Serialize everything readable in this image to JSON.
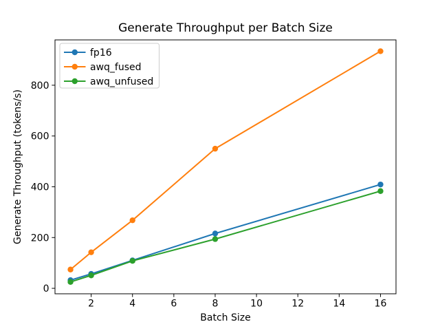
{
  "figure": {
    "title": "Generate Throughput per Batch Size",
    "xlabel": "Batch Size",
    "ylabel": "Generate Throughput (tokens/s)"
  },
  "chart_data": {
    "type": "line",
    "title": "Generate Throughput per Batch Size",
    "xlabel": "Batch Size",
    "ylabel": "Generate Throughput (tokens/s)",
    "x": [
      1,
      2,
      4,
      8,
      16
    ],
    "series": [
      {
        "name": "fp16",
        "color": "#1f77b4",
        "values": [
          32,
          57,
          110,
          216,
          409
        ]
      },
      {
        "name": "awq_fused",
        "color": "#ff7f0e",
        "values": [
          74,
          142,
          268,
          550,
          934
        ]
      },
      {
        "name": "awq_unfused",
        "color": "#2ca02c",
        "values": [
          25,
          51,
          108,
          194,
          383
        ]
      }
    ],
    "xlim": [
      0.25,
      16.75
    ],
    "ylim": [
      -21.5,
      978.5
    ],
    "xticks": [
      2,
      4,
      6,
      8,
      10,
      12,
      14,
      16
    ],
    "yticks": [
      0,
      200,
      400,
      600,
      800
    ],
    "grid": false,
    "marker": "o",
    "legend": {
      "position": "upper left",
      "entries": [
        "fp16",
        "awq_fused",
        "awq_unfused"
      ],
      "border_color": "#cccccc",
      "background": "#ffffff"
    },
    "spine_color": "#000000"
  }
}
